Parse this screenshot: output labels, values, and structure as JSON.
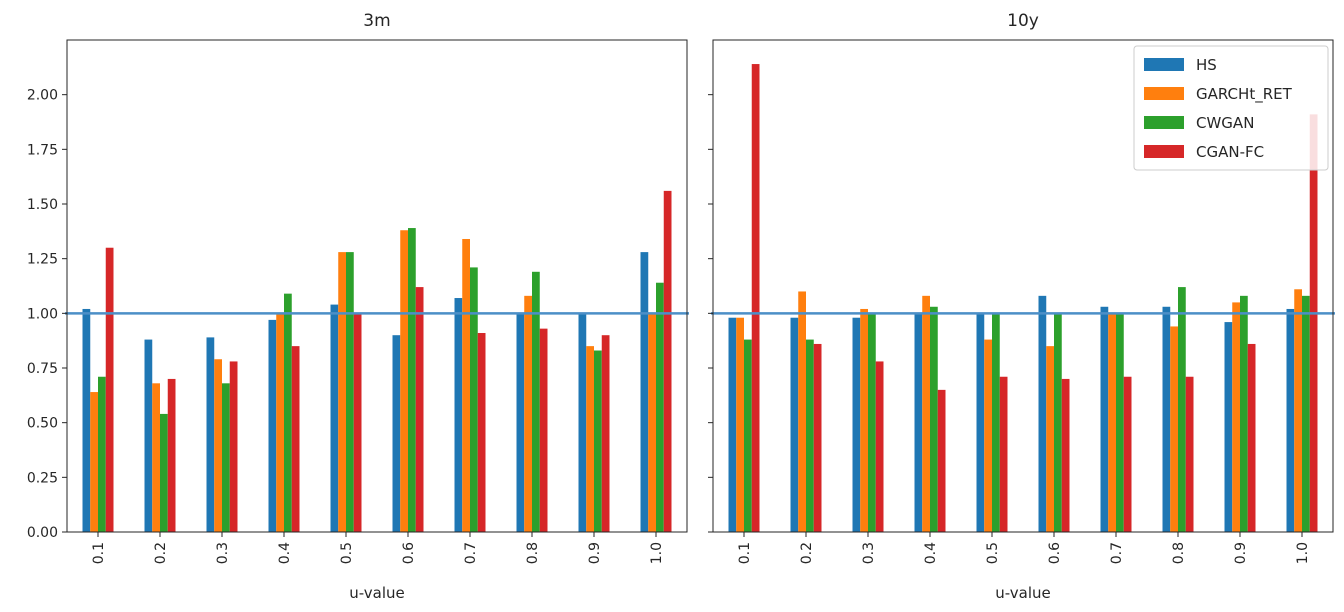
{
  "chart_data": [
    {
      "type": "bar",
      "title": "3m",
      "xlabel": "u-value",
      "ylabel": "",
      "ylim": [
        0,
        2.25
      ],
      "yticks": [
        0.0,
        0.25,
        0.5,
        0.75,
        1.0,
        1.25,
        1.5,
        1.75,
        2.0
      ],
      "ytick_labels": [
        "0.00",
        "0.25",
        "0.50",
        "0.75",
        "1.00",
        "1.25",
        "1.50",
        "1.75",
        "2.00"
      ],
      "categories": [
        "0.1",
        "0.2",
        "0.3",
        "0.4",
        "0.5",
        "0.6",
        "0.7",
        "0.8",
        "0.9",
        "1.0"
      ],
      "reference_line": 1.0,
      "legend": "none",
      "grid": false,
      "series": [
        {
          "name": "HS",
          "values": [
            1.02,
            0.88,
            0.89,
            0.97,
            1.04,
            0.9,
            1.07,
            1.0,
            1.0,
            1.28
          ]
        },
        {
          "name": "GARCHt_RET",
          "values": [
            0.64,
            0.68,
            0.79,
            1.0,
            1.28,
            1.38,
            1.34,
            1.08,
            0.85,
            1.0
          ]
        },
        {
          "name": "CWGAN",
          "values": [
            0.71,
            0.54,
            0.68,
            1.09,
            1.28,
            1.39,
            1.21,
            1.19,
            0.83,
            1.14
          ]
        },
        {
          "name": "CGAN-FC",
          "values": [
            1.3,
            0.7,
            0.78,
            0.85,
            1.0,
            1.12,
            0.91,
            0.93,
            0.9,
            1.56
          ]
        }
      ]
    },
    {
      "type": "bar",
      "title": "10y",
      "xlabel": "u-value",
      "ylabel": "",
      "ylim": [
        0,
        2.25
      ],
      "categories": [
        "0.1",
        "0.2",
        "0.3",
        "0.4",
        "0.5",
        "0.6",
        "0.7",
        "0.8",
        "0.9",
        "1.0"
      ],
      "reference_line": 1.0,
      "legend": "top-right",
      "grid": false,
      "series": [
        {
          "name": "HS",
          "values": [
            0.98,
            0.98,
            0.98,
            1.0,
            1.0,
            1.08,
            1.03,
            1.03,
            0.96,
            1.02
          ]
        },
        {
          "name": "GARCHt_RET",
          "values": [
            0.98,
            1.1,
            1.02,
            1.08,
            0.88,
            0.85,
            1.0,
            0.94,
            1.05,
            1.11
          ]
        },
        {
          "name": "CWGAN",
          "values": [
            0.88,
            0.88,
            1.0,
            1.03,
            1.0,
            1.0,
            1.0,
            1.12,
            1.08,
            1.08
          ]
        },
        {
          "name": "CGAN-FC",
          "values": [
            2.14,
            0.86,
            0.78,
            0.65,
            0.71,
            0.7,
            0.71,
            0.71,
            0.86,
            1.91
          ]
        }
      ]
    }
  ],
  "colors": {
    "HS": "#1f77b4",
    "GARCHt_RET": "#ff7f0e",
    "CWGAN": "#2ca02c",
    "CGAN-FC": "#d62728",
    "reference_line": "#4c8fc7"
  }
}
